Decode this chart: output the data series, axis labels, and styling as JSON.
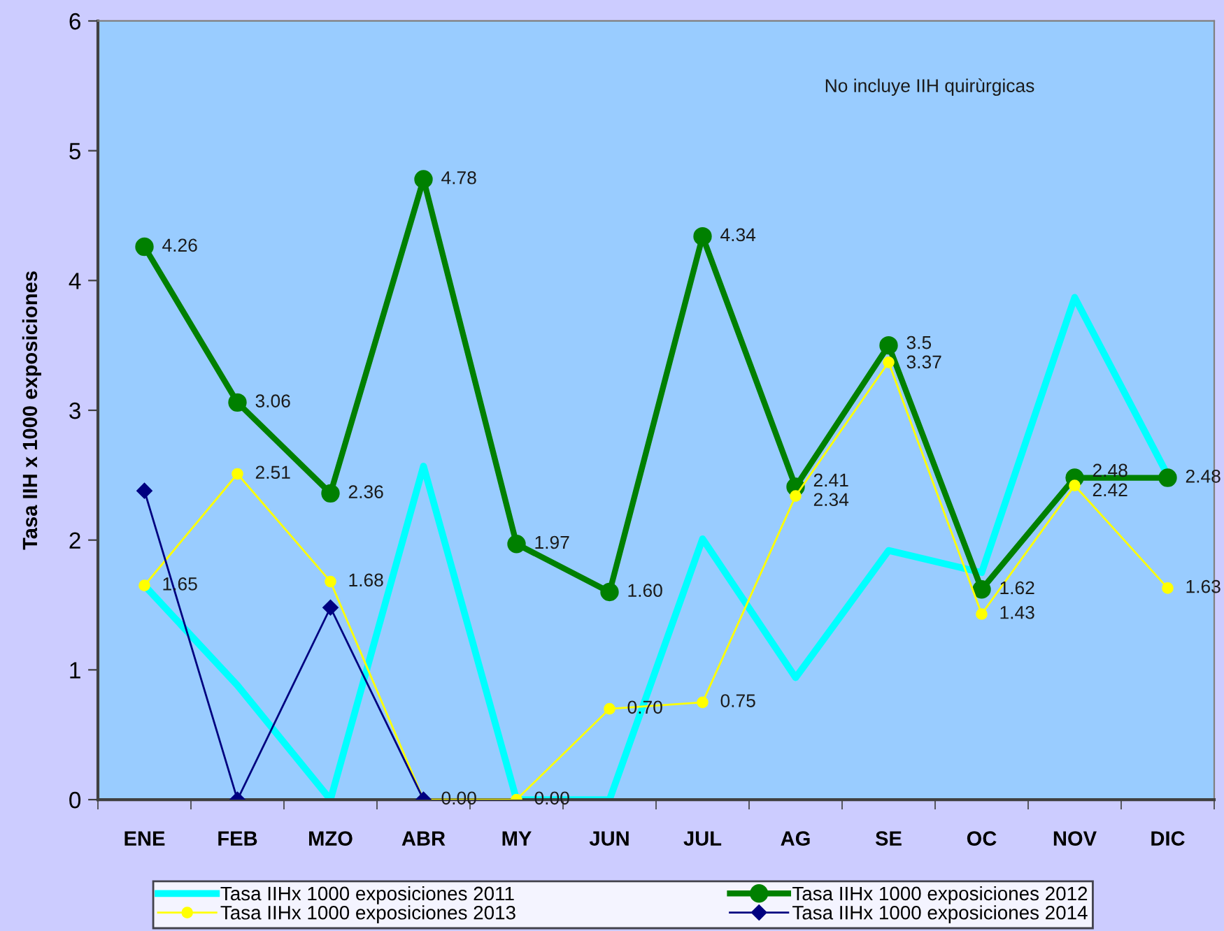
{
  "chart_data": {
    "type": "line",
    "ylabel": "Tasa IIH x 1000 exposiciones",
    "categories": [
      "ENE",
      "FEB",
      "MZO",
      "ABR",
      "MY",
      "JUN",
      "JUL",
      "AG",
      "SE",
      "OC",
      "NOV",
      "DIC"
    ],
    "ylim": [
      0,
      6
    ],
    "yticks": [
      0,
      1,
      2,
      3,
      4,
      5,
      6
    ],
    "grid": false,
    "legend": "bottom",
    "annotations": [
      "No incluye IIH quirùrgicas"
    ],
    "series": [
      {
        "name": "Tasa IIHx 1000 exposiciones 2011",
        "color": "#00ffff",
        "marker": "none",
        "values": [
          1.65,
          0.88,
          0,
          2.57,
          0,
          0,
          2.01,
          0.94,
          1.92,
          1.75,
          3.87,
          2.5
        ]
      },
      {
        "name": "Tasa IIHx 1000 exposiciones 2012",
        "color": "#008000",
        "marker": "circle",
        "values": [
          4.26,
          3.06,
          2.36,
          4.78,
          1.97,
          1.6,
          4.34,
          2.41,
          3.5,
          1.62,
          2.48,
          2.48
        ],
        "value_labels": [
          "4.26",
          "3.06",
          "2.36",
          "4.78",
          "1.97",
          "1.60",
          "4.34",
          "2.41",
          "3.5",
          "1.62",
          "2.48",
          "2.48"
        ]
      },
      {
        "name": "Tasa IIHx 1000 exposiciones 2013",
        "color": "#ffff00",
        "marker": "circle",
        "values": [
          1.65,
          2.51,
          1.68,
          0,
          0,
          0.7,
          0.75,
          2.34,
          3.37,
          1.43,
          2.42,
          1.63
        ],
        "value_labels": [
          "1.65",
          "2.51",
          "1.68",
          "0.00",
          "0.00",
          "0.70",
          "0.75",
          "2.34",
          "3.37",
          "1.43",
          "2.42",
          "1.63"
        ]
      },
      {
        "name": "Tasa IIHx 1000 exposiciones 2014",
        "color": "#000080",
        "marker": "diamond",
        "values": [
          2.38,
          0,
          1.48,
          0,
          null,
          null,
          null,
          null,
          null,
          null,
          null,
          null
        ]
      }
    ]
  }
}
